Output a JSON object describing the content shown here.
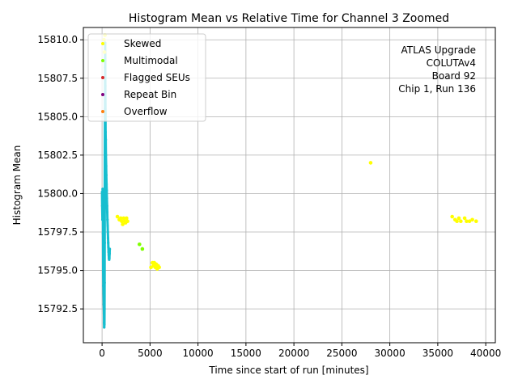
{
  "chart_data": {
    "type": "scatter",
    "title": "Histogram Mean vs Relative Time for Channel 3 Zoomed",
    "xlabel": "Time since start of run [minutes]",
    "ylabel": "Histogram Mean",
    "xlim": [
      -1950,
      41000
    ],
    "ylim": [
      15790.3,
      15810.8
    ],
    "xticks": [
      0,
      5000,
      10000,
      15000,
      20000,
      25000,
      30000,
      35000,
      40000
    ],
    "yticks": [
      15792.5,
      15795.0,
      15797.5,
      15800.0,
      15802.5,
      15805.0,
      15807.5,
      15810.0
    ],
    "xtick_labels": [
      "0",
      "5000",
      "10000",
      "15000",
      "20000",
      "25000",
      "30000",
      "35000",
      "40000"
    ],
    "ytick_labels": [
      "15792.5",
      "15795.0",
      "15797.5",
      "15800.0",
      "15802.5",
      "15805.0",
      "15807.5",
      "15810.0"
    ],
    "grid": true,
    "legend_position": "top-left",
    "annotation": [
      "ATLAS Upgrade",
      "COLUTAv4",
      "Board 92",
      "Chip 1, Run 136"
    ],
    "main_series": {
      "color": "#17becf",
      "points": [
        [
          0,
          15800.1
        ],
        [
          20,
          15799.2
        ],
        [
          40,
          15798.3
        ],
        [
          60,
          15800.3
        ],
        [
          80,
          15799.6
        ],
        [
          100,
          15797.4
        ],
        [
          120,
          15795.0
        ],
        [
          140,
          15794.0
        ],
        [
          160,
          15793.5
        ],
        [
          180,
          15792.8
        ],
        [
          200,
          15792.2
        ],
        [
          210,
          15791.6
        ],
        [
          220,
          15791.3
        ],
        [
          240,
          15791.5
        ],
        [
          250,
          15792.5
        ],
        [
          260,
          15794.2
        ],
        [
          270,
          15796.8
        ],
        [
          280,
          15799.5
        ],
        [
          290,
          15802.5
        ],
        [
          300,
          15805.5
        ],
        [
          310,
          15808.2
        ],
        [
          320,
          15809.8
        ],
        [
          330,
          15808.8
        ],
        [
          340,
          15807.0
        ],
        [
          350,
          15805.2
        ],
        [
          360,
          15804.0
        ],
        [
          380,
          15803.5
        ],
        [
          400,
          15802.5
        ],
        [
          420,
          15801.8
        ],
        [
          440,
          15801.2
        ],
        [
          460,
          15800.6
        ],
        [
          480,
          15800.2
        ],
        [
          500,
          15799.7
        ],
        [
          520,
          15799.2
        ],
        [
          540,
          15798.8
        ],
        [
          560,
          15798.3
        ],
        [
          580,
          15797.9
        ],
        [
          600,
          15797.5
        ],
        [
          620,
          15797.1
        ],
        [
          640,
          15796.8
        ],
        [
          660,
          15796.5
        ],
        [
          680,
          15796.2
        ],
        [
          700,
          15796.0
        ],
        [
          720,
          15795.8
        ],
        [
          740,
          15795.7
        ],
        [
          760,
          15795.8
        ],
        [
          780,
          15796.1
        ],
        [
          800,
          15796.4
        ]
      ]
    },
    "series": [
      {
        "name": "Skewed",
        "color": "#ffff00",
        "points": [
          [
            200,
            15810.0
          ],
          [
            250,
            15809.2
          ],
          [
            300,
            15810.3
          ],
          [
            1600,
            15798.5
          ],
          [
            1800,
            15798.3
          ],
          [
            1950,
            15798.4
          ],
          [
            2050,
            15798.2
          ],
          [
            2150,
            15798.0
          ],
          [
            2250,
            15798.4
          ],
          [
            2350,
            15798.2
          ],
          [
            2450,
            15798.1
          ],
          [
            2550,
            15798.4
          ],
          [
            2650,
            15798.2
          ],
          [
            5100,
            15795.2
          ],
          [
            5250,
            15795.5
          ],
          [
            5350,
            15795.3
          ],
          [
            5450,
            15795.5
          ],
          [
            5550,
            15795.2
          ],
          [
            5650,
            15795.4
          ],
          [
            5750,
            15795.1
          ],
          [
            5850,
            15795.3
          ],
          [
            5950,
            15795.2
          ],
          [
            28000,
            15802.0
          ],
          [
            36500,
            15798.5
          ],
          [
            36800,
            15798.3
          ],
          [
            37000,
            15798.2
          ],
          [
            37200,
            15798.4
          ],
          [
            37400,
            15798.2
          ],
          [
            37800,
            15798.4
          ],
          [
            38000,
            15798.2
          ],
          [
            38300,
            15798.2
          ],
          [
            38600,
            15798.3
          ],
          [
            39000,
            15798.2
          ]
        ]
      },
      {
        "name": "Multimodal",
        "color": "#7fff00",
        "points": [
          [
            3900,
            15796.7
          ],
          [
            4200,
            15796.4
          ]
        ]
      },
      {
        "name": "Flagged SEUs",
        "color": "#d62728",
        "points": []
      },
      {
        "name": "Repeat Bin",
        "color": "#800080",
        "points": []
      },
      {
        "name": "Overflow",
        "color": "#ff7f0e",
        "points": []
      }
    ]
  }
}
